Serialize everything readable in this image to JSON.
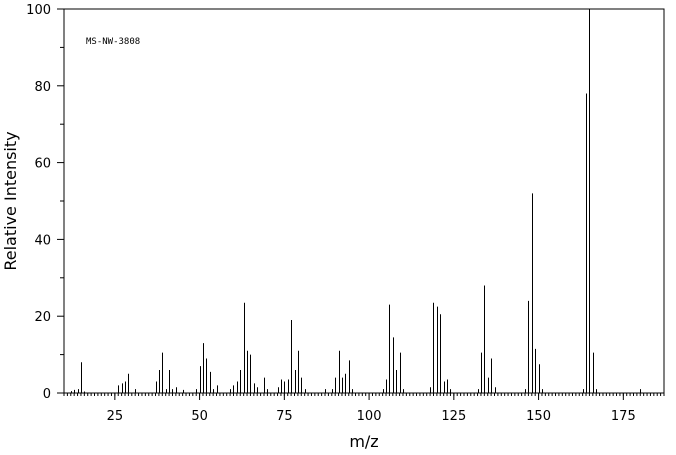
{
  "chart_data": {
    "type": "bar",
    "title": "",
    "annotation": "MS-NW-3808",
    "xlabel": "m/z",
    "ylabel": "Relative Intensity",
    "xlim": [
      10,
      187
    ],
    "ylim": [
      0,
      100
    ],
    "x_ticks": [
      25,
      50,
      75,
      100,
      125,
      150,
      175
    ],
    "y_ticks": [
      0,
      20,
      40,
      60,
      80,
      100
    ],
    "grid": false,
    "peaks": [
      {
        "mz": 12,
        "intensity": 0.5
      },
      {
        "mz": 13,
        "intensity": 0.8
      },
      {
        "mz": 14,
        "intensity": 1.0
      },
      {
        "mz": 15,
        "intensity": 8.0
      },
      {
        "mz": 16,
        "intensity": 0.4
      },
      {
        "mz": 26,
        "intensity": 2.0
      },
      {
        "mz": 27,
        "intensity": 2.5
      },
      {
        "mz": 28,
        "intensity": 3.0
      },
      {
        "mz": 29,
        "intensity": 5.0
      },
      {
        "mz": 31,
        "intensity": 1.0
      },
      {
        "mz": 37,
        "intensity": 3.0
      },
      {
        "mz": 38,
        "intensity": 6.0
      },
      {
        "mz": 39,
        "intensity": 10.5
      },
      {
        "mz": 40,
        "intensity": 1.0
      },
      {
        "mz": 41,
        "intensity": 6.0
      },
      {
        "mz": 42,
        "intensity": 1.0
      },
      {
        "mz": 43,
        "intensity": 1.5
      },
      {
        "mz": 45,
        "intensity": 0.8
      },
      {
        "mz": 49,
        "intensity": 1.0
      },
      {
        "mz": 50,
        "intensity": 7.0
      },
      {
        "mz": 51,
        "intensity": 13.0
      },
      {
        "mz": 52,
        "intensity": 9.0
      },
      {
        "mz": 53,
        "intensity": 5.5
      },
      {
        "mz": 54,
        "intensity": 1.0
      },
      {
        "mz": 55,
        "intensity": 2.0
      },
      {
        "mz": 59,
        "intensity": 1.0
      },
      {
        "mz": 60,
        "intensity": 2.0
      },
      {
        "mz": 61,
        "intensity": 3.0
      },
      {
        "mz": 62,
        "intensity": 6.0
      },
      {
        "mz": 63,
        "intensity": 23.5
      },
      {
        "mz": 64,
        "intensity": 11.0
      },
      {
        "mz": 65,
        "intensity": 10.0
      },
      {
        "mz": 66,
        "intensity": 2.5
      },
      {
        "mz": 67,
        "intensity": 1.5
      },
      {
        "mz": 69,
        "intensity": 4.0
      },
      {
        "mz": 70,
        "intensity": 1.0
      },
      {
        "mz": 73,
        "intensity": 1.5
      },
      {
        "mz": 74,
        "intensity": 3.5
      },
      {
        "mz": 75,
        "intensity": 3.0
      },
      {
        "mz": 76,
        "intensity": 3.5
      },
      {
        "mz": 77,
        "intensity": 19.0
      },
      {
        "mz": 78,
        "intensity": 6.0
      },
      {
        "mz": 79,
        "intensity": 11.0
      },
      {
        "mz": 80,
        "intensity": 4.0
      },
      {
        "mz": 81,
        "intensity": 1.0
      },
      {
        "mz": 87,
        "intensity": 1.0
      },
      {
        "mz": 89,
        "intensity": 1.0
      },
      {
        "mz": 90,
        "intensity": 4.0
      },
      {
        "mz": 91,
        "intensity": 11.0
      },
      {
        "mz": 92,
        "intensity": 4.0
      },
      {
        "mz": 93,
        "intensity": 5.0
      },
      {
        "mz": 94,
        "intensity": 8.5
      },
      {
        "mz": 95,
        "intensity": 1.0
      },
      {
        "mz": 104,
        "intensity": 1.0
      },
      {
        "mz": 105,
        "intensity": 3.5
      },
      {
        "mz": 106,
        "intensity": 23.0
      },
      {
        "mz": 107,
        "intensity": 14.5
      },
      {
        "mz": 108,
        "intensity": 6.0
      },
      {
        "mz": 109,
        "intensity": 10.5
      },
      {
        "mz": 110,
        "intensity": 1.0
      },
      {
        "mz": 118,
        "intensity": 1.5
      },
      {
        "mz": 119,
        "intensity": 23.5
      },
      {
        "mz": 120,
        "intensity": 22.5
      },
      {
        "mz": 121,
        "intensity": 20.5
      },
      {
        "mz": 122,
        "intensity": 3.0
      },
      {
        "mz": 123,
        "intensity": 3.5
      },
      {
        "mz": 124,
        "intensity": 1.0
      },
      {
        "mz": 132,
        "intensity": 1.0
      },
      {
        "mz": 133,
        "intensity": 10.5
      },
      {
        "mz": 134,
        "intensity": 28.0
      },
      {
        "mz": 135,
        "intensity": 4.0
      },
      {
        "mz": 136,
        "intensity": 9.0
      },
      {
        "mz": 137,
        "intensity": 1.5
      },
      {
        "mz": 146,
        "intensity": 1.0
      },
      {
        "mz": 147,
        "intensity": 24.0
      },
      {
        "mz": 148,
        "intensity": 52.0
      },
      {
        "mz": 149,
        "intensity": 11.5
      },
      {
        "mz": 150,
        "intensity": 7.5
      },
      {
        "mz": 151,
        "intensity": 1.0
      },
      {
        "mz": 163,
        "intensity": 1.0
      },
      {
        "mz": 164,
        "intensity": 78.0
      },
      {
        "mz": 165,
        "intensity": 100.0
      },
      {
        "mz": 166,
        "intensity": 10.5
      },
      {
        "mz": 167,
        "intensity": 1.0
      },
      {
        "mz": 180,
        "intensity": 1.0
      }
    ]
  }
}
